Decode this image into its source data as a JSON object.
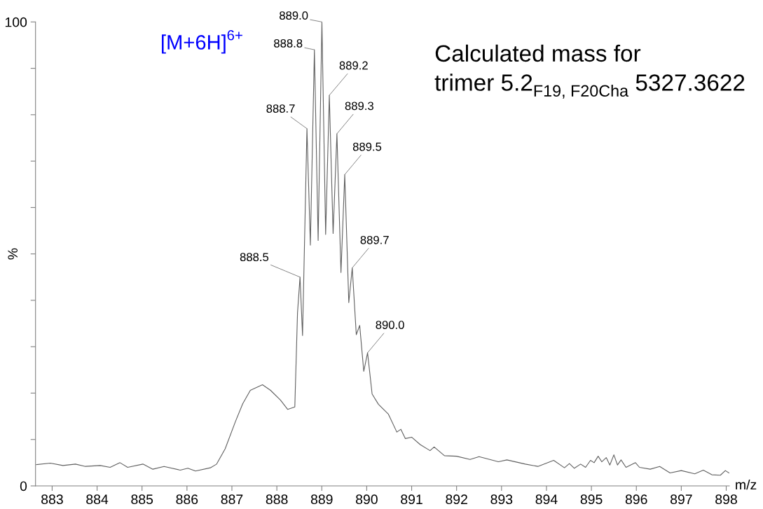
{
  "chart_data": {
    "type": "line",
    "xlabel": "m/z",
    "ylabel": "%",
    "xlim": [
      882.63,
      898.07
    ],
    "xticks": [
      883,
      884,
      885,
      886,
      887,
      888,
      889,
      890,
      891,
      892,
      893,
      894,
      895,
      896,
      897,
      898
    ],
    "ylim": [
      0,
      100
    ],
    "yticks": [
      0,
      {
        "value": 10,
        "label": null
      },
      {
        "value": 20,
        "label": null
      },
      {
        "value": 30,
        "label": null
      },
      {
        "value": 40,
        "label": null
      },
      {
        "value": 50,
        "label": null
      },
      {
        "value": 60,
        "label": null
      },
      {
        "value": 70,
        "label": null
      },
      {
        "value": 80,
        "label": null
      },
      {
        "value": 90,
        "label": null
      },
      100
    ],
    "grid": false,
    "marker": "none",
    "line_style": "solid",
    "series": [
      {
        "color": "#606060",
        "x": [
          882.65,
          882.96,
          883.24,
          883.52,
          883.74,
          884.07,
          884.29,
          884.51,
          884.68,
          885.02,
          885.24,
          885.49,
          885.85,
          886.02,
          886.19,
          886.52,
          886.66,
          886.85,
          887.08,
          887.24,
          887.41,
          887.68,
          887.86,
          888.08,
          888.24,
          888.4,
          888.46,
          888.516,
          888.572,
          888.67,
          888.746,
          888.836,
          888.919,
          889.003,
          889.086,
          889.168,
          889.252,
          889.337,
          889.427,
          889.511,
          889.601,
          889.678,
          889.768,
          889.844,
          889.934,
          890.019,
          890.12,
          890.26,
          890.48,
          890.67,
          890.76,
          890.86,
          891.0,
          891.19,
          891.41,
          891.5,
          891.73,
          892.0,
          892.3,
          892.5,
          892.93,
          893.12,
          893.53,
          893.81,
          894.16,
          894.4,
          894.51,
          894.62,
          894.76,
          894.87,
          894.98,
          895.06,
          895.15,
          895.23,
          895.33,
          895.41,
          895.5,
          895.58,
          895.66,
          895.77,
          895.98,
          896.07,
          896.31,
          896.52,
          896.75,
          897.0,
          897.3,
          897.49,
          897.68,
          897.87,
          897.98,
          898.06
        ],
        "values": [
          4.6,
          4.9,
          4.4,
          4.7,
          4.2,
          4.4,
          4.0,
          5.0,
          4.0,
          4.7,
          3.6,
          4.2,
          3.4,
          3.8,
          3.2,
          3.9,
          4.7,
          8.0,
          13.9,
          17.7,
          20.6,
          21.8,
          20.6,
          18.5,
          16.5,
          17.0,
          37.3,
          45.0,
          32.4,
          77.0,
          51.9,
          94.0,
          52.9,
          100,
          54.2,
          84.2,
          54.4,
          75.9,
          46.0,
          67.1,
          39.5,
          47.0,
          32.6,
          34.6,
          24.7,
          28.7,
          19.8,
          17.6,
          15.5,
          11.6,
          12.2,
          10.2,
          10.5,
          8.9,
          7.6,
          8.4,
          6.5,
          6.4,
          5.7,
          6.3,
          5.2,
          5.6,
          4.7,
          4.2,
          5.5,
          3.9,
          4.8,
          3.8,
          4.7,
          4.0,
          5.5,
          5.0,
          6.4,
          5.2,
          6.1,
          4.5,
          6.7,
          4.5,
          5.6,
          4.0,
          5.0,
          4.0,
          3.6,
          4.2,
          2.8,
          3.3,
          2.6,
          3.4,
          2.4,
          2.3,
          3.3,
          2.8
        ]
      }
    ],
    "annotations": [
      "[M+6H]$^{6+}$",
      "Calculated mass for\ntrimer 5.2$_{F19, F20Cha}$ 5327.3622",
      {
        "text": "888.5",
        "x": 888.516,
        "y": 45.0
      },
      {
        "text": "888.7",
        "x": 888.67,
        "y": 77.0
      },
      {
        "text": "888.8",
        "x": 888.836,
        "y": 94.0
      },
      {
        "text": "889.0",
        "x": 889.003,
        "y": 100
      },
      {
        "text": "889.2",
        "x": 889.168,
        "y": 84.2
      },
      {
        "text": "889.3",
        "x": 889.337,
        "y": 75.9
      },
      {
        "text": "889.5",
        "x": 889.511,
        "y": 67.1
      },
      {
        "text": "889.7",
        "x": 889.678,
        "y": 47.0
      },
      {
        "text": "890.0",
        "x": 890.019,
        "y": 28.7
      }
    ]
  }
}
